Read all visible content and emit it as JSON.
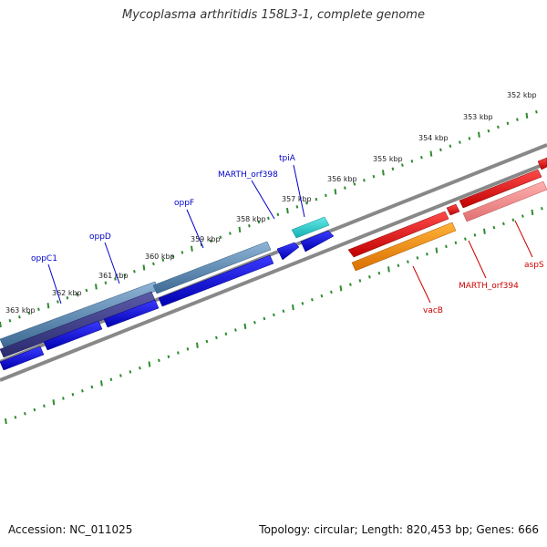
{
  "title": "Mycoplasma arthritidis 158L3-1, complete genome",
  "footer": {
    "accession": "Accession: NC_011025",
    "stats": "Topology: circular; Length: 820,453 bp; Genes: 666"
  },
  "colors": {
    "forward_label": "#0000cc",
    "reverse_label": "#cc0000",
    "backbone": "#888888",
    "tick": "#2e8b2e"
  },
  "ticks": [
    "352 kbp",
    "353 kbp",
    "354 kbp",
    "355 kbp",
    "356 kbp",
    "357 kbp",
    "358 kbp",
    "359 kbp",
    "360 kbp",
    "361 kbp",
    "362 kbp",
    "363 kbp"
  ],
  "genes": [
    {
      "label": "oppC1",
      "strand": "forward"
    },
    {
      "label": "oppD",
      "strand": "forward"
    },
    {
      "label": "oppF",
      "strand": "forward"
    },
    {
      "label": "MARTH_orf398",
      "strand": "forward"
    },
    {
      "label": "tpiA",
      "strand": "forward"
    },
    {
      "label": "vacB",
      "strand": "reverse"
    },
    {
      "label": "MARTH_orf394",
      "strand": "reverse"
    },
    {
      "label": "aspS",
      "strand": "reverse"
    }
  ]
}
